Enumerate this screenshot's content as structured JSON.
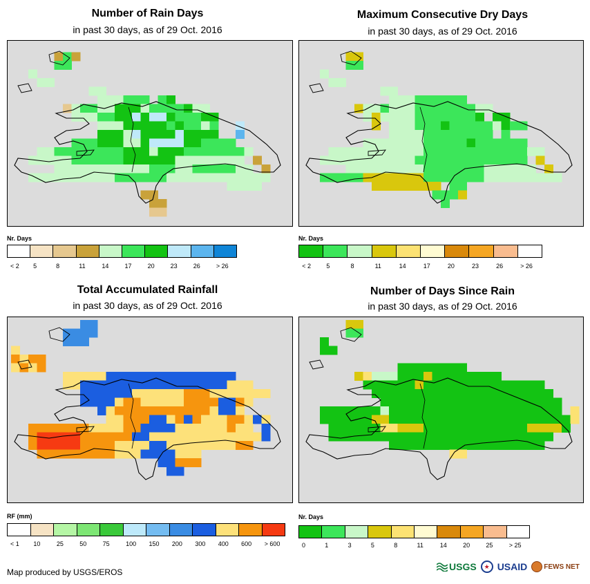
{
  "panels": [
    {
      "title": "Number of Rain Days",
      "subtitle": "in past 30 days, as of 29 Oct. 2016",
      "legend_title": "Nr. Days",
      "legend_colors": [
        "#ffffff",
        "#f6e3c4",
        "#e6c88f",
        "#c9a23a",
        "#c8f7c8",
        "#3ce65a",
        "#13c313",
        "#bfe9f9",
        "#5cb5ee",
        "#0f85d7"
      ],
      "legend_labels": [
        "< 2",
        "5",
        "8",
        "11",
        "14",
        "17",
        "20",
        "23",
        "26",
        "> 26"
      ],
      "grid_palette": [
        "#c8f7c8",
        "#3ce65a",
        "#13c313",
        "#bfe9f9",
        "#c9a23a",
        "#e6c88f",
        "#5cb5ee"
      ],
      "grid": [
        "................................",
        ".....414.........................",
        ".....11..........................",
        "..0..............................",
        "...00............................",
        ".........00......................",
        "..........000111.12..............",
        "......50110022201111200..........",
        ".......00011223233211122.........",
        "..........00022222121101..3......",
        "..........22203222232222..6......",
        ".......1112220023333221111.......",
        "...0011111111222022211111110......",
        "..0000011111122222200000000.4.....",
        ".....00000000000111001111100.4....",
        "..0000000000111111000000000000....",
        ".........................0000.....",
        "...............44.................",
        "................44................",
        "................55..............."
      ]
    },
    {
      "title": "Maximum Consecutive Dry Days",
      "subtitle": "in past 30 days, as of 29 Oct. 2016",
      "legend_title": "Nr. Days",
      "legend_colors": [
        "#13c313",
        "#3ce65a",
        "#c8f7c8",
        "#d9c70d",
        "#fce273",
        "#fffbd2",
        "#d9890b",
        "#f5a623",
        "#f9bc8f",
        "#ffffff"
      ],
      "legend_labels": [
        "< 2",
        "5",
        "8",
        "11",
        "14",
        "17",
        "20",
        "23",
        "26",
        "> 26"
      ],
      "grid_palette": [
        "#c8f7c8",
        "#3ce65a",
        "#13c313",
        "#d9c70d",
        "#fce273"
      ],
      "grid": [
        "................................",
        ".....33..........................",
        ".....11..........................",
        "..0..............................",
        "...00............................",
        ".........00......................",
        "..........000111111..............",
        "......3001000111111100...........",
        ".......03000011111112.22.........",
        "........3.0001112111110211.......",
        "..........000011111111.1.........",
        ".......0000000111112111111.......",
        "...0000000000011111111111100......",
        "..000000000001111111111111.3......",
        ".....0000000001111111000000.3.....",
        "..1111133333331111111000000000....",
        "........33333333.11..............",
        "...............1113.............",
        "................1................",
        "................................."
      ]
    },
    {
      "title": "Total Accumulated Rainfall",
      "subtitle": "in past 30 days, as of 29 Oct. 2016",
      "legend_title": "RF (mm)",
      "legend_colors": [
        "#ffffff",
        "#f6e3c4",
        "#b5f6a5",
        "#7de674",
        "#3ac93a",
        "#bde9fa",
        "#74bcf1",
        "#3a8ce3",
        "#1b5ee0",
        "#fde17a",
        "#f6950e",
        "#f63a12"
      ],
      "legend_labels": [
        "< 1",
        "10",
        "25",
        "50",
        "75",
        "100",
        "150",
        "200",
        "300",
        "400",
        "600",
        "> 600"
      ],
      "grid_palette": [
        "#fde17a",
        "#f6950e",
        "#f63a12",
        "#1b5ee0",
        "#3a8ce3",
        "#74bcf1"
      ],
      "grid": [
        "........44......................",
        "......4444.......................",
        "......444........................",
        "0................................",
        "1011.............................",
        "0101.............................",
        "......00000333333333333333.......",
        "......0033333333333333333000.....",
        "........3333330000001110000000...",
        "........33330110000011113310......",
        "..........30111111111110330.......",
        "...........0011133013100011030....",
        "..11111110000113333000000100.3....",
        "..1222221111113300000000000003....",
        "..12222211110000330000000011......",
        "...1111111110003333000...........",
        ".................33111...........",
        "..................33.............",
        "................................."
      ]
    },
    {
      "title": "Number of Days Since Rain",
      "subtitle": "in past 30 days, as of 29 Oct. 2016",
      "legend_title": "Nr. Days",
      "legend_colors": [
        "#13c313",
        "#3ce65a",
        "#c8f7c8",
        "#d9c70d",
        "#fce273",
        "#fffbd2",
        "#d9890b",
        "#f5a623",
        "#f9bc8f",
        "#ffffff"
      ],
      "legend_labels": [
        "0",
        "1",
        "3",
        "5",
        "8",
        "11",
        "14",
        "20",
        "25",
        "> 25"
      ],
      "grid_palette": [
        "#13c313",
        "#3ce65a",
        "#c8f7c8",
        "#d9c70d",
        "#fce273"
      ],
      "grid": [
        ".....33..........................",
        ".....11..........................",
        "..0..............................",
        "..00.............................",
        "................................",
        "...........00000000..............",
        "......34222000300000000...........",
        ".......000000300000000000000......",
        "........000000000000000000000.....",
        ".........000000000000000000000....",
        "..0000000200000000000000000000.4...",
        "..000000330000000000000000000004...",
        "...0000004433300000000000033330....",
        "...00000000000000000000000000......",
        "..........000000000000000000......",
        ".................44..............",
        ".................................",
        "................................."
      ]
    }
  ],
  "credit": "Map produced by USGS/EROS",
  "logos": {
    "usgs": "USGS",
    "usaid": "USAID",
    "fews": "FEWS NET"
  }
}
